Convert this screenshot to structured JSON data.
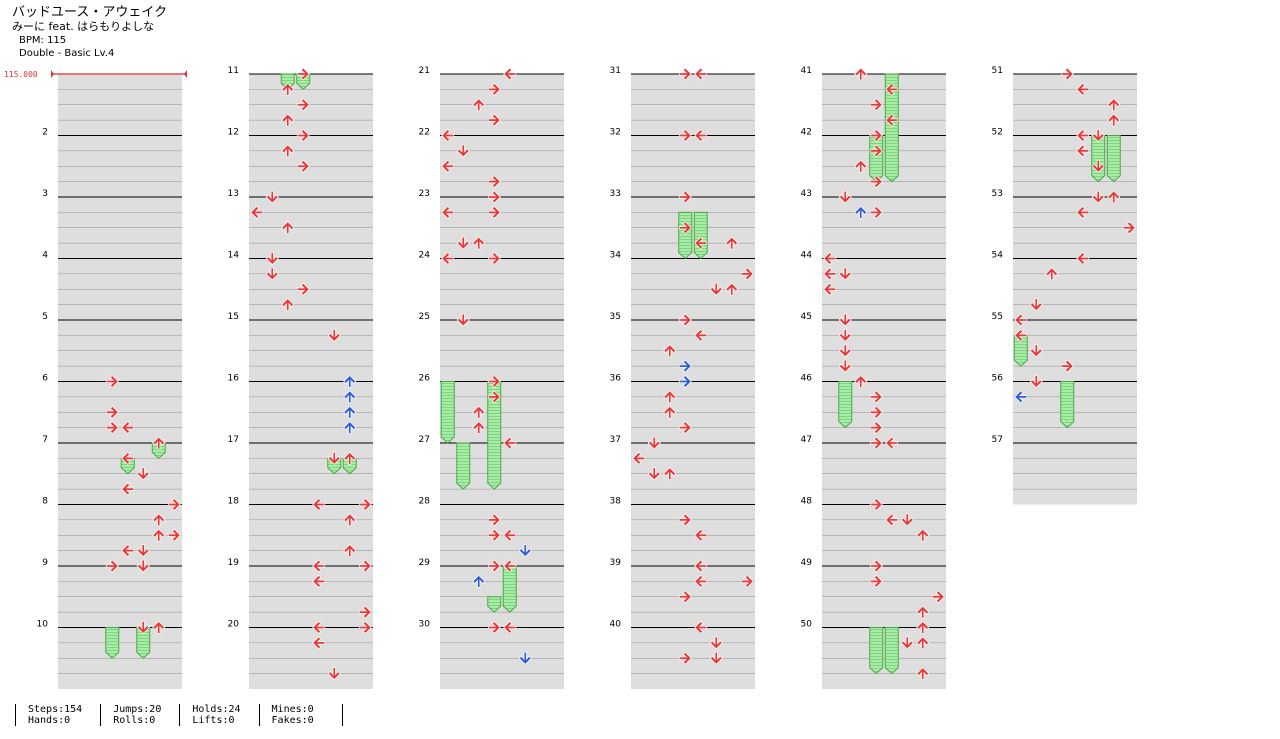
{
  "header": {
    "song_title": "バッドユース・アウェイク",
    "artist": "みーに feat. はらもりよしな",
    "bpm": "BPM: 115",
    "difficulty": "Double - Basic  Lv.4",
    "bpm_marker": "115.000"
  },
  "chart": {
    "style": "double",
    "panels": 8,
    "measures": 57,
    "bpm_changes": [
      {
        "measure": 1,
        "bpm": "115.000"
      }
    ],
    "colors": {
      "quarter": "#e83838",
      "sixteenth": "#2e5cdc",
      "hold": "#98e898",
      "hold_border": "#4aa84a",
      "bar": "#dedede"
    },
    "notes": [
      {
        "m": 6,
        "b": 0,
        "p": 3,
        "c": "r"
      },
      {
        "m": 6,
        "b": 2,
        "p": 3,
        "c": "r"
      },
      {
        "m": 6,
        "b": 3,
        "p": 3,
        "c": "r"
      },
      {
        "m": 6,
        "b": 3,
        "p": 4,
        "c": "r"
      },
      {
        "m": 7,
        "b": 0,
        "p": 6,
        "c": "r"
      },
      {
        "m": 7,
        "b": 1,
        "p": 4,
        "c": "r"
      },
      {
        "m": 7,
        "b": 2,
        "p": 5,
        "c": "r"
      },
      {
        "m": 7,
        "b": 3,
        "p": 4,
        "c": "r"
      },
      {
        "m": 8,
        "b": 0,
        "p": 7,
        "c": "r"
      },
      {
        "m": 8,
        "b": 1,
        "p": 6,
        "c": "r"
      },
      {
        "m": 8,
        "b": 2,
        "p": 6,
        "c": "r"
      },
      {
        "m": 8,
        "b": 2,
        "p": 7,
        "c": "r"
      },
      {
        "m": 8,
        "b": 3,
        "p": 4,
        "c": "r"
      },
      {
        "m": 8,
        "b": 3,
        "p": 5,
        "c": "r"
      },
      {
        "m": 9,
        "b": 0,
        "p": 3,
        "c": "r"
      },
      {
        "m": 9,
        "b": 0,
        "p": 5,
        "c": "r"
      },
      {
        "m": 10,
        "b": 0,
        "p": 6,
        "c": "r"
      },
      {
        "m": 10,
        "b": 0,
        "p": 5,
        "c": "r"
      },
      {
        "m": 11,
        "b": 0,
        "p": 3,
        "c": "r"
      },
      {
        "m": 11,
        "b": 1,
        "p": 2,
        "c": "r"
      },
      {
        "m": 11,
        "b": 2,
        "p": 3,
        "c": "r"
      },
      {
        "m": 11,
        "b": 3,
        "p": 2,
        "c": "r"
      },
      {
        "m": 12,
        "b": 0,
        "p": 3,
        "c": "r"
      },
      {
        "m": 12,
        "b": 1,
        "p": 2,
        "c": "r"
      },
      {
        "m": 12,
        "b": 2,
        "p": 3,
        "c": "r"
      },
      {
        "m": 13,
        "b": 0,
        "p": 1,
        "c": "r"
      },
      {
        "m": 13,
        "b": 1,
        "p": 0,
        "c": "r"
      },
      {
        "m": 13,
        "b": 2,
        "p": 2,
        "c": "r"
      },
      {
        "m": 14,
        "b": 0,
        "p": 1,
        "c": "r"
      },
      {
        "m": 14,
        "b": 1,
        "p": 1,
        "c": "r"
      },
      {
        "m": 14,
        "b": 2,
        "p": 3,
        "c": "r"
      },
      {
        "m": 14,
        "b": 3,
        "p": 2,
        "c": "r"
      },
      {
        "m": 15,
        "b": 1,
        "p": 5,
        "c": "r"
      },
      {
        "m": 16,
        "b": 0,
        "p": 6,
        "c": "b"
      },
      {
        "m": 16,
        "b": 1,
        "p": 6,
        "c": "b"
      },
      {
        "m": 16,
        "b": 2,
        "p": 6,
        "c": "b"
      },
      {
        "m": 16,
        "b": 3,
        "p": 6,
        "c": "b"
      },
      {
        "m": 17,
        "b": 1,
        "p": 5,
        "c": "r"
      },
      {
        "m": 17,
        "b": 1,
        "p": 6,
        "c": "r"
      },
      {
        "m": 18,
        "b": 0,
        "p": 7,
        "c": "r"
      },
      {
        "m": 18,
        "b": 0,
        "p": 4,
        "c": "r"
      },
      {
        "m": 18,
        "b": 1,
        "p": 6,
        "c": "r"
      },
      {
        "m": 18,
        "b": 3,
        "p": 6,
        "c": "r"
      },
      {
        "m": 19,
        "b": 0,
        "p": 7,
        "c": "r"
      },
      {
        "m": 19,
        "b": 0,
        "p": 4,
        "c": "r"
      },
      {
        "m": 19,
        "b": 1,
        "p": 4,
        "c": "r"
      },
      {
        "m": 19,
        "b": 3,
        "p": 7,
        "c": "r"
      },
      {
        "m": 20,
        "b": 0,
        "p": 4,
        "c": "r"
      },
      {
        "m": 20,
        "b": 0,
        "p": 7,
        "c": "r"
      },
      {
        "m": 20,
        "b": 1,
        "p": 4,
        "c": "r"
      },
      {
        "m": 20,
        "b": 3,
        "p": 5,
        "c": "r"
      },
      {
        "m": 21,
        "b": 0,
        "p": 4,
        "c": "r"
      },
      {
        "m": 21,
        "b": 1,
        "p": 3,
        "c": "r"
      },
      {
        "m": 21,
        "b": 2,
        "p": 2,
        "c": "r"
      },
      {
        "m": 21,
        "b": 3,
        "p": 3,
        "c": "r"
      },
      {
        "m": 22,
        "b": 0,
        "p": 0,
        "c": "r"
      },
      {
        "m": 22,
        "b": 1,
        "p": 1,
        "c": "r"
      },
      {
        "m": 22,
        "b": 2,
        "p": 0,
        "c": "r"
      },
      {
        "m": 22,
        "b": 3,
        "p": 3,
        "c": "r"
      },
      {
        "m": 23,
        "b": 0,
        "p": 3,
        "c": "r"
      },
      {
        "m": 23,
        "b": 1,
        "p": 0,
        "c": "r"
      },
      {
        "m": 23,
        "b": 1,
        "p": 3,
        "c": "r"
      },
      {
        "m": 23,
        "b": 3,
        "p": 1,
        "c": "r"
      },
      {
        "m": 23,
        "b": 3,
        "p": 2,
        "c": "r"
      },
      {
        "m": 24,
        "b": 0,
        "p": 0,
        "c": "r"
      },
      {
        "m": 24,
        "b": 0,
        "p": 3,
        "c": "r"
      },
      {
        "m": 25,
        "b": 0,
        "p": 1,
        "c": "r"
      },
      {
        "m": 26,
        "b": 0,
        "p": 3,
        "c": "r"
      },
      {
        "m": 26,
        "b": 1,
        "p": 3,
        "c": "r"
      },
      {
        "m": 26,
        "b": 2,
        "p": 2,
        "c": "r"
      },
      {
        "m": 26,
        "b": 3,
        "p": 2,
        "c": "r"
      },
      {
        "m": 27,
        "b": 0,
        "p": 4,
        "c": "r"
      },
      {
        "m": 28,
        "b": 1,
        "p": 3,
        "c": "r"
      },
      {
        "m": 28,
        "b": 2,
        "p": 3,
        "c": "r"
      },
      {
        "m": 28,
        "b": 2,
        "p": 4,
        "c": "r"
      },
      {
        "m": 28,
        "b": 3,
        "p": 5,
        "c": "b"
      },
      {
        "m": 29,
        "b": 0,
        "p": 3,
        "c": "r"
      },
      {
        "m": 29,
        "b": 0,
        "p": 4,
        "c": "r"
      },
      {
        "m": 29,
        "b": 1,
        "p": 2,
        "c": "b"
      },
      {
        "m": 30,
        "b": 0,
        "p": 3,
        "c": "r"
      },
      {
        "m": 30,
        "b": 0,
        "p": 4,
        "c": "r"
      },
      {
        "m": 30,
        "b": 2,
        "p": 5,
        "c": "b"
      },
      {
        "m": 31,
        "b": 0,
        "p": 3,
        "c": "r"
      },
      {
        "m": 31,
        "b": 0,
        "p": 4,
        "c": "r"
      },
      {
        "m": 32,
        "b": 0,
        "p": 3,
        "c": "r"
      },
      {
        "m": 32,
        "b": 0,
        "p": 4,
        "c": "r"
      },
      {
        "m": 33,
        "b": 0,
        "p": 3,
        "c": "r"
      },
      {
        "m": 33,
        "b": 2,
        "p": 3,
        "c": "r"
      },
      {
        "m": 33,
        "b": 3,
        "p": 4,
        "c": "r"
      },
      {
        "m": 33,
        "b": 3,
        "p": 6,
        "c": "r"
      },
      {
        "m": 34,
        "b": 1,
        "p": 7,
        "c": "r"
      },
      {
        "m": 34,
        "b": 2,
        "p": 5,
        "c": "r"
      },
      {
        "m": 34,
        "b": 2,
        "p": 6,
        "c": "r"
      },
      {
        "m": 35,
        "b": 0,
        "p": 3,
        "c": "r"
      },
      {
        "m": 35,
        "b": 1,
        "p": 4,
        "c": "r"
      },
      {
        "m": 35,
        "b": 2,
        "p": 2,
        "c": "r"
      },
      {
        "m": 35,
        "b": 3,
        "p": 3,
        "c": "b"
      },
      {
        "m": 36,
        "b": 0,
        "p": 3,
        "c": "b"
      },
      {
        "m": 36,
        "b": 1,
        "p": 2,
        "c": "r"
      },
      {
        "m": 36,
        "b": 2,
        "p": 2,
        "c": "r"
      },
      {
        "m": 36,
        "b": 3,
        "p": 3,
        "c": "r"
      },
      {
        "m": 37,
        "b": 0,
        "p": 1,
        "c": "r"
      },
      {
        "m": 37,
        "b": 1,
        "p": 0,
        "c": "r"
      },
      {
        "m": 37,
        "b": 2,
        "p": 1,
        "c": "r"
      },
      {
        "m": 37,
        "b": 2,
        "p": 2,
        "c": "r"
      },
      {
        "m": 38,
        "b": 1,
        "p": 3,
        "c": "r"
      },
      {
        "m": 38,
        "b": 2,
        "p": 4,
        "c": "r"
      },
      {
        "m": 39,
        "b": 0,
        "p": 4,
        "c": "r"
      },
      {
        "m": 39,
        "b": 1,
        "p": 4,
        "c": "r"
      },
      {
        "m": 39,
        "b": 1,
        "p": 7,
        "c": "r"
      },
      {
        "m": 39,
        "b": 2,
        "p": 3,
        "c": "r"
      },
      {
        "m": 40,
        "b": 0,
        "p": 4,
        "c": "r"
      },
      {
        "m": 40,
        "b": 1,
        "p": 5,
        "c": "r"
      },
      {
        "m": 40,
        "b": 2,
        "p": 5,
        "c": "r"
      },
      {
        "m": 40,
        "b": 2,
        "p": 3,
        "c": "r"
      },
      {
        "m": 41,
        "b": 0,
        "p": 2,
        "c": "r"
      },
      {
        "m": 41,
        "b": 1,
        "p": 4,
        "c": "r"
      },
      {
        "m": 41,
        "b": 2,
        "p": 3,
        "c": "r"
      },
      {
        "m": 41,
        "b": 3,
        "p": 4,
        "c": "r"
      },
      {
        "m": 42,
        "b": 0,
        "p": 3,
        "c": "r"
      },
      {
        "m": 42,
        "b": 1,
        "p": 3,
        "c": "r"
      },
      {
        "m": 42,
        "b": 2,
        "p": 2,
        "c": "r"
      },
      {
        "m": 42,
        "b": 3,
        "p": 3,
        "c": "r"
      },
      {
        "m": 43,
        "b": 0,
        "p": 1,
        "c": "r"
      },
      {
        "m": 43,
        "b": 1,
        "p": 3,
        "c": "r"
      },
      {
        "m": 43,
        "b": 1,
        "p": 2,
        "c": "b"
      },
      {
        "m": 44,
        "b": 0,
        "p": 0,
        "c": "r"
      },
      {
        "m": 44,
        "b": 1,
        "p": 0,
        "c": "r"
      },
      {
        "m": 44,
        "b": 1,
        "p": 1,
        "c": "r"
      },
      {
        "m": 44,
        "b": 2,
        "p": 0,
        "c": "r"
      },
      {
        "m": 45,
        "b": 0,
        "p": 1,
        "c": "r"
      },
      {
        "m": 45,
        "b": 1,
        "p": 1,
        "c": "r"
      },
      {
        "m": 45,
        "b": 2,
        "p": 1,
        "c": "r"
      },
      {
        "m": 45,
        "b": 3,
        "p": 1,
        "c": "r"
      },
      {
        "m": 46,
        "b": 0,
        "p": 2,
        "c": "r"
      },
      {
        "m": 46,
        "b": 1,
        "p": 3,
        "c": "r"
      },
      {
        "m": 46,
        "b": 2,
        "p": 3,
        "c": "r"
      },
      {
        "m": 46,
        "b": 3,
        "p": 3,
        "c": "r"
      },
      {
        "m": 47,
        "b": 0,
        "p": 3,
        "c": "r"
      },
      {
        "m": 47,
        "b": 0,
        "p": 4,
        "c": "r"
      },
      {
        "m": 48,
        "b": 0,
        "p": 3,
        "c": "r"
      },
      {
        "m": 48,
        "b": 1,
        "p": 5,
        "c": "r"
      },
      {
        "m": 48,
        "b": 1,
        "p": 4,
        "c": "r"
      },
      {
        "m": 48,
        "b": 2,
        "p": 6,
        "c": "r"
      },
      {
        "m": 49,
        "b": 0,
        "p": 3,
        "c": "r"
      },
      {
        "m": 49,
        "b": 1,
        "p": 3,
        "c": "r"
      },
      {
        "m": 49,
        "b": 2,
        "p": 7,
        "c": "r"
      },
      {
        "m": 49,
        "b": 3,
        "p": 6,
        "c": "r"
      },
      {
        "m": 50,
        "b": 0,
        "p": 6,
        "c": "r"
      },
      {
        "m": 50,
        "b": 1,
        "p": 5,
        "c": "r"
      },
      {
        "m": 50,
        "b": 1,
        "p": 6,
        "c": "r"
      },
      {
        "m": 50,
        "b": 3,
        "p": 6,
        "c": "r"
      },
      {
        "m": 51,
        "b": 0,
        "p": 3,
        "c": "r"
      },
      {
        "m": 51,
        "b": 1,
        "p": 4,
        "c": "r"
      },
      {
        "m": 51,
        "b": 2,
        "p": 6,
        "c": "r"
      },
      {
        "m": 51,
        "b": 3,
        "p": 6,
        "c": "r"
      },
      {
        "m": 52,
        "b": 0,
        "p": 4,
        "c": "r"
      },
      {
        "m": 52,
        "b": 0,
        "p": 5,
        "c": "r"
      },
      {
        "m": 52,
        "b": 1,
        "p": 4,
        "c": "r"
      },
      {
        "m": 52,
        "b": 2,
        "p": 5,
        "c": "r"
      },
      {
        "m": 53,
        "b": 0,
        "p": 5,
        "c": "r"
      },
      {
        "m": 53,
        "b": 0,
        "p": 6,
        "c": "r"
      },
      {
        "m": 53,
        "b": 1,
        "p": 4,
        "c": "r"
      },
      {
        "m": 53,
        "b": 2,
        "p": 7,
        "c": "r"
      },
      {
        "m": 54,
        "b": 0,
        "p": 4,
        "c": "r"
      },
      {
        "m": 54,
        "b": 1,
        "p": 2,
        "c": "r"
      },
      {
        "m": 54,
        "b": 3,
        "p": 1,
        "c": "r"
      },
      {
        "m": 55,
        "b": 0,
        "p": 0,
        "c": "r"
      },
      {
        "m": 55,
        "b": 1,
        "p": 0,
        "c": "r"
      },
      {
        "m": 55,
        "b": 2,
        "p": 1,
        "c": "r"
      },
      {
        "m": 55,
        "b": 3,
        "p": 3,
        "c": "r"
      },
      {
        "m": 56,
        "b": 0,
        "p": 1,
        "c": "r"
      },
      {
        "m": 56,
        "b": 1,
        "p": 0,
        "c": "b"
      }
    ],
    "holds": [
      {
        "m": 7,
        "b": 0,
        "p": 6,
        "len": 1
      },
      {
        "m": 7,
        "b": 1,
        "p": 4,
        "len": 1
      },
      {
        "m": 10,
        "b": 0,
        "p": 3,
        "len": 2
      },
      {
        "m": 10,
        "b": 0,
        "p": 5,
        "len": 2
      },
      {
        "m": 11,
        "b": 0,
        "p": 2,
        "len": 1
      },
      {
        "m": 11,
        "b": 0,
        "p": 3,
        "len": 1
      },
      {
        "m": 17,
        "b": 1,
        "p": 5,
        "len": 1
      },
      {
        "m": 17,
        "b": 1,
        "p": 6,
        "len": 1
      },
      {
        "m": 26,
        "b": 0,
        "p": 0,
        "len": 4
      },
      {
        "m": 26,
        "b": 0,
        "p": 3,
        "len": 7
      },
      {
        "m": 27,
        "b": 0,
        "p": 1,
        "len": 3
      },
      {
        "m": 29,
        "b": 0,
        "p": 4,
        "len": 3
      },
      {
        "m": 29,
        "b": 2,
        "p": 3,
        "len": 1
      },
      {
        "m": 33,
        "b": 1,
        "p": 3,
        "len": 3
      },
      {
        "m": 33,
        "b": 1,
        "p": 4,
        "len": 3
      },
      {
        "m": 41,
        "b": 0,
        "p": 4,
        "len": 7
      },
      {
        "m": 42,
        "b": 0,
        "p": 3,
        "len": 3
      },
      {
        "m": 46,
        "b": 0,
        "p": 1,
        "len": 3
      },
      {
        "m": 50,
        "b": 0,
        "p": 3,
        "len": 3
      },
      {
        "m": 50,
        "b": 0,
        "p": 4,
        "len": 3
      },
      {
        "m": 52,
        "b": 0,
        "p": 5,
        "len": 3
      },
      {
        "m": 52,
        "b": 0,
        "p": 6,
        "len": 3
      },
      {
        "m": 55,
        "b": 1,
        "p": 0,
        "len": 2
      },
      {
        "m": 56,
        "b": 0,
        "p": 3,
        "len": 3
      }
    ]
  },
  "stats": {
    "col1": [
      "Steps:154",
      "Hands:0"
    ],
    "col2": [
      "Jumps:20",
      "Rolls:0"
    ],
    "col3": [
      "Holds:24",
      "Lifts:0"
    ],
    "col4": [
      "Mines:0",
      "Fakes:0"
    ]
  }
}
